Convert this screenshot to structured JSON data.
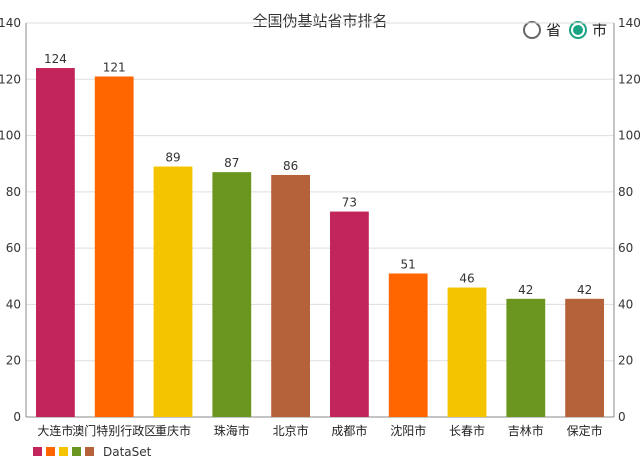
{
  "title": "全国伪基站省市排名",
  "toggle": {
    "options": [
      "省",
      "市"
    ],
    "selected_index": 1,
    "accent_color": "#1aa384"
  },
  "chart_data": {
    "type": "bar",
    "title": "全国伪基站省市排名",
    "categories": [
      "大连市",
      "澳门特别行政区",
      "重庆市",
      "珠海市",
      "北京市",
      "成都市",
      "沈阳市",
      "长春市",
      "吉林市",
      "保定市"
    ],
    "series": [
      {
        "name": "DataSet",
        "values": [
          124,
          121,
          89,
          87,
          86,
          73,
          51,
          46,
          42,
          42
        ]
      }
    ],
    "colors": [
      "#c2255c",
      "#ff6600",
      "#f5c400",
      "#6a961f",
      "#b5623a"
    ],
    "ylim": [
      0,
      140
    ],
    "yticks": [
      0,
      20,
      40,
      60,
      80,
      100,
      120,
      140
    ],
    "right_axis": true,
    "grid": true,
    "data_labels": true,
    "legend": {
      "label": "DataSet",
      "position": "bottom-left"
    }
  }
}
